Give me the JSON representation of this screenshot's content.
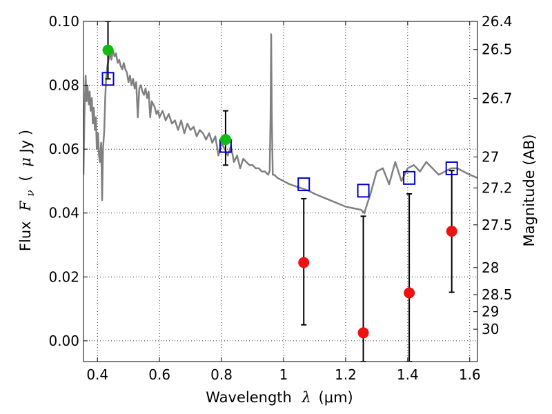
{
  "chart_data": {
    "type": "scatter",
    "xlabel": {
      "prefix": "Wavelength",
      "symbol": "λ",
      "unit": "(μm)"
    },
    "ylabel": {
      "prefix": "Flux",
      "symbol": "F",
      "sub": "ν",
      "unit_open": "(",
      "unit_mu": "μ",
      "unit_rest": "Jy )"
    },
    "y2label": "Magnitude (AB)",
    "xlim": [
      0.355,
      1.625
    ],
    "ylim": [
      -0.0065,
      0.1
    ],
    "grid": true,
    "x_ticks": [
      {
        "v": 0.4,
        "label": "0.4"
      },
      {
        "v": 0.6,
        "label": "0.6"
      },
      {
        "v": 0.8,
        "label": "0.8"
      },
      {
        "v": 1.0,
        "label": "1"
      },
      {
        "v": 1.2,
        "label": "1.2"
      },
      {
        "v": 1.4,
        "label": "1.4"
      },
      {
        "v": 1.6,
        "label": "1.6"
      }
    ],
    "y_ticks": [
      {
        "v": 0.0,
        "label": "0.00"
      },
      {
        "v": 0.02,
        "label": "0.02"
      },
      {
        "v": 0.04,
        "label": "0.04"
      },
      {
        "v": 0.06,
        "label": "0.06"
      },
      {
        "v": 0.08,
        "label": "0.08"
      },
      {
        "v": 0.1,
        "label": "0.10"
      }
    ],
    "y2_ticks": [
      {
        "mag": 26.4,
        "label": "26.4"
      },
      {
        "mag": 26.5,
        "label": "26.5"
      },
      {
        "mag": 26.7,
        "label": "26.7"
      },
      {
        "mag": 27.0,
        "label": "27"
      },
      {
        "mag": 27.2,
        "label": "27.2"
      },
      {
        "mag": 27.5,
        "label": "27.5"
      },
      {
        "mag": 28.0,
        "label": "28"
      },
      {
        "mag": 28.5,
        "label": "28.5"
      },
      {
        "mag": 29.0,
        "label": "29"
      },
      {
        "mag": 30.0,
        "label": "30"
      }
    ],
    "series": [
      {
        "kind": "model_spectrum",
        "color": "#808080",
        "x": [
          0.355,
          0.358,
          0.362,
          0.365,
          0.368,
          0.372,
          0.375,
          0.378,
          0.382,
          0.385,
          0.388,
          0.392,
          0.395,
          0.398,
          0.402,
          0.405,
          0.408,
          0.412,
          0.415,
          0.418,
          0.422,
          0.425,
          0.428,
          0.432,
          0.436,
          0.44,
          0.445,
          0.45,
          0.455,
          0.46,
          0.465,
          0.47,
          0.475,
          0.48,
          0.485,
          0.49,
          0.495,
          0.5,
          0.505,
          0.51,
          0.515,
          0.52,
          0.525,
          0.53,
          0.535,
          0.54,
          0.545,
          0.55,
          0.555,
          0.56,
          0.565,
          0.57,
          0.575,
          0.58,
          0.585,
          0.59,
          0.595,
          0.6,
          0.61,
          0.62,
          0.63,
          0.64,
          0.65,
          0.66,
          0.67,
          0.68,
          0.69,
          0.7,
          0.71,
          0.72,
          0.73,
          0.74,
          0.75,
          0.76,
          0.77,
          0.78,
          0.79,
          0.8,
          0.81,
          0.82,
          0.83,
          0.84,
          0.85,
          0.86,
          0.87,
          0.88,
          0.89,
          0.9,
          0.91,
          0.92,
          0.93,
          0.94,
          0.95,
          0.955,
          0.958,
          0.96,
          0.962,
          0.965,
          0.97,
          0.98,
          1.0,
          1.02,
          1.05,
          1.08,
          1.1,
          1.15,
          1.2,
          1.25,
          1.26,
          1.28,
          1.3,
          1.32,
          1.34,
          1.36,
          1.38,
          1.4,
          1.42,
          1.44,
          1.46,
          1.48,
          1.5,
          1.52,
          1.54,
          1.56,
          1.58,
          1.6,
          1.625
        ],
        "y": [
          0.052,
          0.07,
          0.083,
          0.075,
          0.08,
          0.074,
          0.078,
          0.072,
          0.076,
          0.068,
          0.073,
          0.066,
          0.07,
          0.06,
          0.065,
          0.058,
          0.056,
          0.062,
          0.044,
          0.06,
          0.066,
          0.076,
          0.082,
          0.086,
          0.088,
          0.09,
          0.088,
          0.091,
          0.089,
          0.09,
          0.087,
          0.088,
          0.086,
          0.085,
          0.087,
          0.085,
          0.084,
          0.081,
          0.083,
          0.08,
          0.082,
          0.079,
          0.081,
          0.07,
          0.079,
          0.08,
          0.078,
          0.077,
          0.079,
          0.076,
          0.078,
          0.07,
          0.075,
          0.074,
          0.073,
          0.071,
          0.072,
          0.07,
          0.072,
          0.069,
          0.071,
          0.068,
          0.069,
          0.066,
          0.069,
          0.065,
          0.068,
          0.066,
          0.067,
          0.064,
          0.066,
          0.065,
          0.063,
          0.065,
          0.062,
          0.064,
          0.058,
          0.062,
          0.06,
          0.058,
          0.061,
          0.056,
          0.058,
          0.054,
          0.057,
          0.056,
          0.055,
          0.055,
          0.054,
          0.054,
          0.053,
          0.053,
          0.052,
          0.053,
          0.07,
          0.096,
          0.07,
          0.052,
          0.052,
          0.051,
          0.05,
          0.049,
          0.048,
          0.047,
          0.046,
          0.044,
          0.042,
          0.041,
          0.04,
          0.046,
          0.053,
          0.054,
          0.049,
          0.056,
          0.05,
          0.054,
          0.055,
          0.053,
          0.056,
          0.054,
          0.052,
          0.053,
          0.054,
          0.054,
          0.053,
          0.052,
          0.051
        ]
      },
      {
        "kind": "model_photometry",
        "color": "#0000cc",
        "x": [
          0.434,
          0.813,
          1.065,
          1.257,
          1.405,
          1.542
        ],
        "y": [
          0.082,
          0.061,
          0.049,
          0.047,
          0.051,
          0.054
        ]
      },
      {
        "kind": "detections",
        "color": "#11bb11",
        "x": [
          0.434,
          0.813
        ],
        "y": [
          0.091,
          0.063
        ],
        "err_lo": [
          0.082,
          0.055
        ],
        "err_hi": [
          0.1,
          0.072
        ]
      },
      {
        "kind": "non_detections",
        "color": "#ee1111",
        "x": [
          1.065,
          1.257,
          1.405,
          1.542
        ],
        "y": [
          0.0245,
          0.0025,
          0.015,
          0.0343
        ],
        "err_lo": [
          0.005,
          -0.0065,
          -0.0065,
          0.0152
        ],
        "err_hi": [
          0.0445,
          0.039,
          0.046,
          0.0533
        ]
      }
    ]
  }
}
